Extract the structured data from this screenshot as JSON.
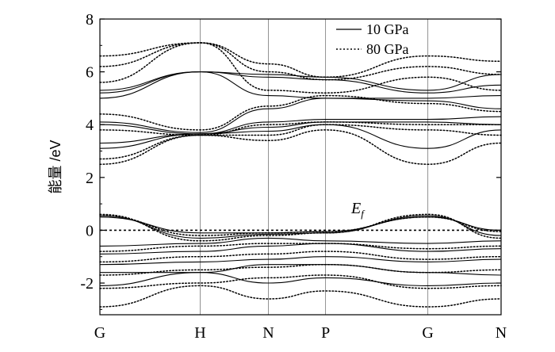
{
  "chart_data": {
    "type": "line",
    "ylabel": "能量 /eV",
    "ylim": [
      -3.2,
      8
    ],
    "yticks": [
      8,
      6,
      4,
      2,
      0,
      -2
    ],
    "kpath": [
      "G",
      "H",
      "N",
      "P",
      "G",
      "N"
    ],
    "kpath_positions": [
      0,
      1,
      1.68,
      2.25,
      3.27,
      4.0
    ],
    "fermi_label": "E",
    "fermi_subscript": "f",
    "fermi_level": 0,
    "legend_position": "top-right",
    "series": [
      {
        "name": "10 GPa",
        "style": "solid",
        "bands": [
          [
            -2.1,
            -1.6,
            -2.0,
            -1.8,
            -2.1,
            -2.0
          ],
          [
            -1.6,
            -1.6,
            -1.3,
            -1.3,
            -1.6,
            -1.7
          ],
          [
            -1.3,
            -1.2,
            -1.1,
            -1.0,
            -1.2,
            -1.1
          ],
          [
            -0.9,
            -0.8,
            -0.6,
            -0.5,
            -0.8,
            -0.7
          ],
          [
            -0.6,
            -0.5,
            -0.3,
            -0.4,
            -0.5,
            -0.4
          ],
          [
            0.55,
            -0.3,
            -0.15,
            -0.1,
            0.55,
            -0.2
          ],
          [
            0.5,
            -0.1,
            -0.1,
            -0.05,
            0.5,
            0.0
          ],
          [
            3.1,
            3.65,
            3.75,
            4.0,
            3.1,
            3.8
          ],
          [
            3.3,
            3.65,
            3.9,
            4.1,
            4.1,
            4.0
          ],
          [
            4.0,
            3.65,
            4.1,
            4.2,
            4.2,
            4.3
          ],
          [
            4.1,
            3.7,
            4.6,
            5.0,
            4.9,
            4.6
          ],
          [
            5.0,
            6.0,
            5.1,
            5.0,
            5.0,
            5.1
          ],
          [
            5.2,
            6.0,
            5.8,
            5.7,
            5.2,
            5.5
          ],
          [
            5.3,
            6.0,
            5.9,
            5.8,
            5.3,
            5.9
          ]
        ]
      },
      {
        "name": "80 GPa",
        "style": "dotted",
        "bands": [
          [
            -2.9,
            -2.1,
            -2.6,
            -2.3,
            -2.9,
            -2.6
          ],
          [
            -2.2,
            -2.0,
            -1.8,
            -1.7,
            -2.2,
            -2.1
          ],
          [
            -1.7,
            -1.5,
            -1.4,
            -1.3,
            -1.6,
            -1.5
          ],
          [
            -1.2,
            -1.0,
            -0.9,
            -0.8,
            -1.1,
            -1.0
          ],
          [
            -0.8,
            -0.6,
            -0.5,
            -0.5,
            -0.7,
            -0.6
          ],
          [
            0.6,
            -0.4,
            -0.2,
            -0.1,
            0.6,
            -0.3
          ],
          [
            0.55,
            -0.2,
            -0.1,
            -0.05,
            0.5,
            -0.05
          ],
          [
            2.5,
            3.6,
            3.4,
            3.8,
            2.5,
            3.3
          ],
          [
            2.7,
            3.6,
            3.6,
            4.0,
            3.8,
            3.6
          ],
          [
            3.8,
            3.6,
            4.0,
            4.1,
            4.0,
            4.0
          ],
          [
            4.4,
            3.8,
            4.7,
            5.1,
            4.8,
            4.5
          ],
          [
            5.6,
            7.1,
            5.3,
            5.2,
            5.8,
            5.3
          ],
          [
            6.2,
            7.1,
            6.0,
            5.7,
            6.2,
            5.9
          ],
          [
            6.6,
            7.1,
            6.3,
            5.8,
            6.6,
            6.4
          ]
        ]
      }
    ]
  }
}
